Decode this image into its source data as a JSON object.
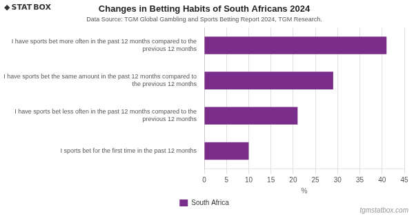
{
  "chart_data": {
    "type": "bar",
    "orientation": "horizontal",
    "title": "Changes in Betting Habits of South Africans 2024",
    "subtitle": "Data Source: TGM Global Gambling and Sports Betting Report 2024, TGM Research.",
    "categories": [
      "I have sports bet more often in the past 12 months compared to the\nprevious 12 months",
      "I have sports bet the same amount in the past 12 months compared to\nthe previous 12 months",
      "I have sports bet less often in the past 12 months compared to the\nprevious 12 months",
      "I sports bet for the first time in the past 12 months"
    ],
    "series": [
      {
        "name": "South Africa",
        "color": "#7B2D8B",
        "values": [
          41,
          29,
          21,
          10
        ]
      }
    ],
    "xlim": [
      0,
      45
    ],
    "xticks": [
      0,
      5,
      10,
      15,
      20,
      25,
      30,
      35,
      40,
      45
    ],
    "xlabel": "%",
    "grid": true,
    "legend": "bottom",
    "annotations": [
      "◆",
      "STAT",
      "BOX",
      "tgmstatbox.com"
    ]
  }
}
